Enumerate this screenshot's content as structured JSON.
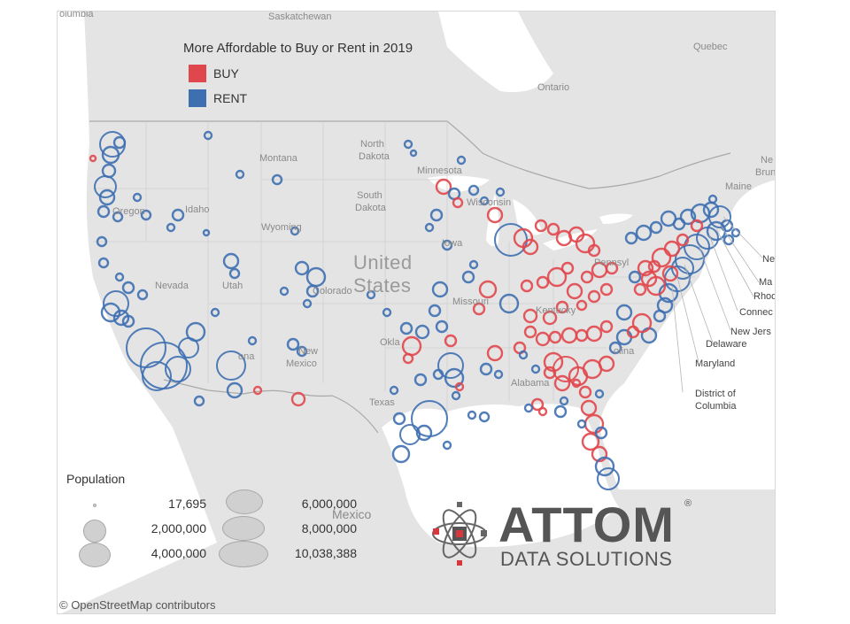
{
  "legend": {
    "title": "More Affordable to Buy or Rent in 2019",
    "items": [
      {
        "label": "BUY",
        "color": "#e0474c"
      },
      {
        "label": "RENT",
        "color": "#3e6fb0"
      }
    ]
  },
  "population": {
    "title": "Population",
    "items": [
      "17,695",
      "2,000,000",
      "4,000,000",
      "6,000,000",
      "8,000,000",
      "10,038,388"
    ]
  },
  "places": {
    "colombia": "olumbia",
    "saskatchewan": "Saskatchewan",
    "quebec": "Quebec",
    "ontario": "Ontario",
    "montana": "Montana",
    "north_dakota_1": "North",
    "north_dakota_2": "Dakota",
    "minnesota": "Minnesota",
    "south_dakota_1": "South",
    "south_dakota_2": "Dakota",
    "oregon": "Oregon",
    "idaho": "Idaho",
    "wyoming": "Wyoming",
    "wisconsin": "Wisconsin",
    "iowa": "Iowa",
    "nevada": "Nevada",
    "utah": "Utah",
    "colorado": "Colorado",
    "missouri": "Missouri",
    "kentucky": "Kentucky",
    "pennsylvania": "Pennsyl",
    "new_mexico_1": "New",
    "new_mexico_2": "Mexico",
    "arizona": "ona",
    "oklahoma": "Okla",
    "texas": "Texas",
    "alabama": "Alabama",
    "carolina": "olina",
    "maine": "Maine",
    "brunswick_1": "Ne",
    "brunswick_2": "Brun",
    "mexico": "Mexico",
    "us_1": "United",
    "us_2": "States"
  },
  "callouts": [
    "Ne",
    "Ma",
    "Rhod",
    "Connec",
    "New Jers",
    "Delaware",
    "Maryland",
    "District of",
    "Columbia"
  ],
  "logo": {
    "word": "ATTOM",
    "registered": "®",
    "sub": "DATA SOLUTIONS"
  },
  "attribution": "© OpenStreetMap contributors"
}
